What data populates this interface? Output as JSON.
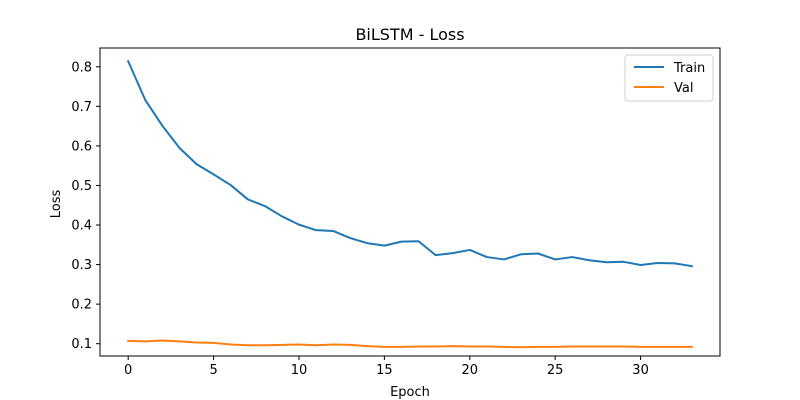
{
  "chart_data": {
    "type": "line",
    "title": "BiLSTM - Loss",
    "xlabel": "Epoch",
    "ylabel": "Loss",
    "xlim": [
      -1.65,
      34.65
    ],
    "ylim": [
      0.0689,
      0.8475
    ],
    "xticks": [
      0,
      5,
      10,
      15,
      20,
      25,
      30
    ],
    "yticks": [
      0.1,
      0.2,
      0.3,
      0.4,
      0.5,
      0.6,
      0.7,
      0.8
    ],
    "grid": false,
    "legend_position": "top-right",
    "x": [
      0,
      1,
      2,
      3,
      4,
      5,
      6,
      7,
      8,
      9,
      10,
      11,
      12,
      13,
      14,
      15,
      16,
      17,
      18,
      19,
      20,
      21,
      22,
      23,
      24,
      25,
      26,
      27,
      28,
      29,
      30,
      31,
      32,
      33
    ],
    "series": [
      {
        "name": "Train",
        "color": "#1f77b4",
        "values": [
          0.814,
          0.716,
          0.651,
          0.595,
          0.554,
          0.528,
          0.501,
          0.465,
          0.448,
          0.422,
          0.401,
          0.387,
          0.385,
          0.367,
          0.354,
          0.348,
          0.358,
          0.359,
          0.324,
          0.329,
          0.337,
          0.319,
          0.313,
          0.326,
          0.328,
          0.313,
          0.319,
          0.311,
          0.306,
          0.307,
          0.299,
          0.304,
          0.303,
          0.296
        ]
      },
      {
        "name": "Val",
        "color": "#ff7f0e",
        "values": [
          0.107,
          0.106,
          0.108,
          0.106,
          0.103,
          0.102,
          0.098,
          0.096,
          0.096,
          0.097,
          0.098,
          0.096,
          0.098,
          0.097,
          0.094,
          0.092,
          0.092,
          0.093,
          0.093,
          0.094,
          0.093,
          0.093,
          0.092,
          0.091,
          0.092,
          0.092,
          0.093,
          0.093,
          0.093,
          0.093,
          0.092,
          0.092,
          0.092,
          0.092
        ]
      }
    ]
  }
}
